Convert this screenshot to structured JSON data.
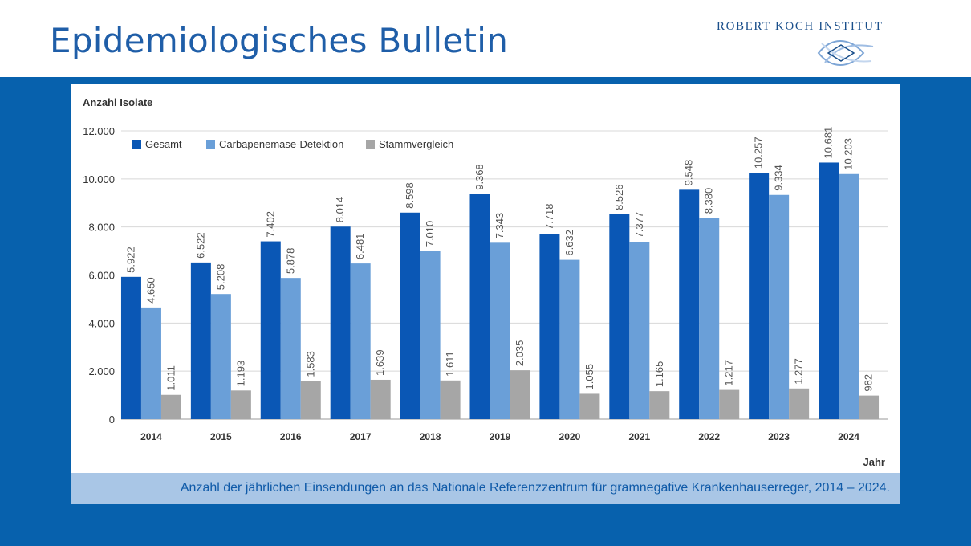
{
  "slide": {
    "title": "Epidemiologisches Bulletin",
    "logo_text": "ROBERT KOCH INSTITUT",
    "caption": "Anzahl der jährlichen Einsendungen an das Nationale Referenzzentrum für gramnegative Krankenhauserreger, 2014 – 2024."
  },
  "colors": {
    "band": "#0761ad",
    "caption_bg": "#a9c6e6",
    "title": "#1f5ea8"
  },
  "chart_data": {
    "type": "bar",
    "ylabel": "Anzahl Isolate",
    "xlabel": "Jahr",
    "ylim": [
      0,
      12000
    ],
    "yticks": [
      0,
      2000,
      4000,
      6000,
      8000,
      10000,
      12000
    ],
    "ytick_labels": [
      "0",
      "2.000",
      "4.000",
      "6.000",
      "8.000",
      "10.000",
      "12.000"
    ],
    "grid": "horizontal",
    "legend_position": "top-left",
    "categories": [
      "2014",
      "2015",
      "2016",
      "2017",
      "2018",
      "2019",
      "2020",
      "2021",
      "2022",
      "2023",
      "2024"
    ],
    "series": [
      {
        "name": "Gesamt",
        "color": "#0a57b5",
        "values": [
          5922,
          6522,
          7402,
          8014,
          8598,
          9368,
          7718,
          8526,
          9548,
          10257,
          10681
        ],
        "labels": [
          "5.922",
          "6.522",
          "7.402",
          "8.014",
          "8.598",
          "9.368",
          "7.718",
          "8.526",
          "9.548",
          "10.257",
          "10.681"
        ]
      },
      {
        "name": "Carbapenemase-Detektion",
        "color": "#6a9fd8",
        "values": [
          4650,
          5208,
          5878,
          6481,
          7010,
          7343,
          6632,
          7377,
          8380,
          9334,
          10203
        ],
        "labels": [
          "4.650",
          "5.208",
          "5.878",
          "6.481",
          "7.010",
          "7.343",
          "6.632",
          "7.377",
          "8.380",
          "9.334",
          "10.203"
        ]
      },
      {
        "name": "Stammvergleich",
        "color": "#a6a6a6",
        "values": [
          1011,
          1193,
          1583,
          1639,
          1611,
          2035,
          1055,
          1165,
          1217,
          1277,
          982
        ],
        "labels": [
          "1.011",
          "1.193",
          "1.583",
          "1.639",
          "1.611",
          "2.035",
          "1.055",
          "1.165",
          "1.217",
          "1.277",
          "982"
        ]
      }
    ]
  }
}
